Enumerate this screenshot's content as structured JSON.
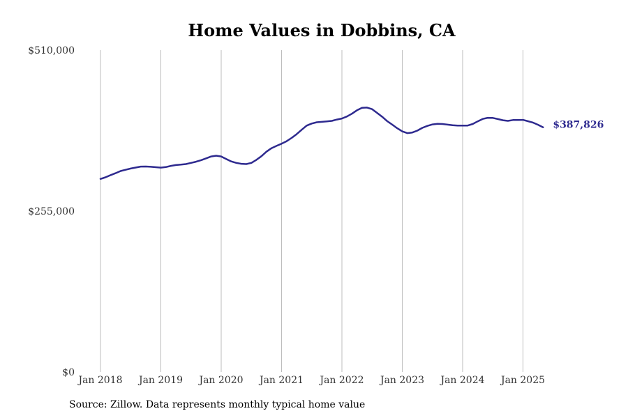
{
  "chart_data": {
    "type": "line",
    "title": "Home Values in Dobbins, CA",
    "xlabel": "",
    "ylabel": "",
    "ylim": [
      0,
      510000
    ],
    "y_ticks": [
      "$510,000",
      "$255,000",
      "$0"
    ],
    "y_tick_values": [
      510000,
      255000,
      0
    ],
    "x_ticks": [
      "Jan 2018",
      "Jan 2019",
      "Jan 2020",
      "Jan 2021",
      "Jan 2022",
      "Jan 2023",
      "Jan 2024",
      "Jan 2025"
    ],
    "grid": "vertical",
    "line_color": "#2e2a8f",
    "end_label": "$387,826",
    "series": [
      {
        "x": [
          "2018-01",
          "2018-02",
          "2018-03",
          "2018-04",
          "2018-05",
          "2018-06",
          "2018-07",
          "2018-08",
          "2018-09",
          "2018-10",
          "2018-11",
          "2018-12",
          "2019-01",
          "2019-02",
          "2019-03",
          "2019-04",
          "2019-05",
          "2019-06",
          "2019-07",
          "2019-08",
          "2019-09",
          "2019-10",
          "2019-11",
          "2019-12",
          "2020-01",
          "2020-02",
          "2020-03",
          "2020-04",
          "2020-05",
          "2020-06",
          "2020-07",
          "2020-08",
          "2020-09",
          "2020-10",
          "2020-11",
          "2020-12",
          "2021-01",
          "2021-02",
          "2021-03",
          "2021-04",
          "2021-05",
          "2021-06",
          "2021-07",
          "2021-08",
          "2021-09",
          "2021-10",
          "2021-11",
          "2021-12",
          "2022-01",
          "2022-02",
          "2022-03",
          "2022-04",
          "2022-05",
          "2022-06",
          "2022-07",
          "2022-08",
          "2022-09",
          "2022-10",
          "2022-11",
          "2022-12",
          "2023-01",
          "2023-02",
          "2023-03",
          "2023-04",
          "2023-05",
          "2023-06",
          "2023-07",
          "2023-08",
          "2023-09",
          "2023-10",
          "2023-11",
          "2023-12",
          "2024-01",
          "2024-02",
          "2024-03",
          "2024-04",
          "2024-05",
          "2024-06",
          "2024-07",
          "2024-08",
          "2024-09",
          "2024-10",
          "2024-11",
          "2024-12",
          "2025-01",
          "2025-02",
          "2025-03",
          "2025-04",
          "2025-05"
        ],
        "values": [
          306000,
          308500,
          312000,
          315000,
          318500,
          320500,
          322500,
          324000,
          325500,
          325700,
          325200,
          324600,
          323900,
          324800,
          326600,
          328000,
          328600,
          329500,
          331400,
          333300,
          335700,
          338600,
          341500,
          342800,
          341600,
          337600,
          333700,
          331400,
          329900,
          329500,
          331400,
          336200,
          342000,
          349200,
          354700,
          358300,
          361700,
          365700,
          370900,
          376900,
          383800,
          390400,
          393800,
          395700,
          396400,
          397200,
          398000,
          400000,
          401700,
          404900,
          409300,
          414700,
          418600,
          419000,
          416500,
          410500,
          404500,
          397500,
          392000,
          386200,
          381300,
          378500,
          379500,
          382500,
          386900,
          390000,
          392300,
          393300,
          393000,
          392000,
          391000,
          390600,
          390400,
          390600,
          393000,
          397200,
          401000,
          402800,
          402600,
          400800,
          398900,
          398000,
          399300,
          399400,
          399500,
          397400,
          395200,
          391800,
          387826
        ]
      }
    ]
  },
  "footer": {
    "source": "Source: Zillow. Data represents monthly typical home value"
  }
}
